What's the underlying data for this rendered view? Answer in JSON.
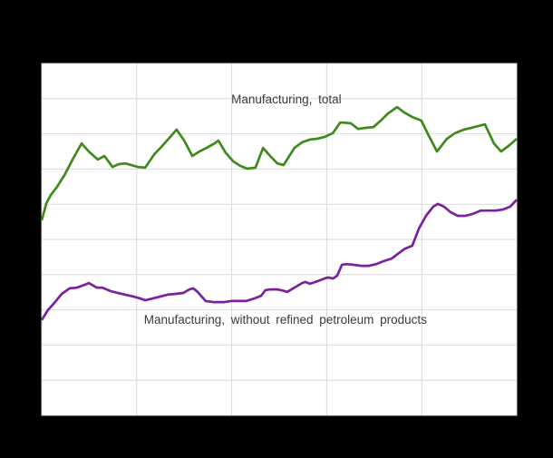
{
  "page": {
    "background_color": "#000000"
  },
  "chart_data": {
    "type": "line",
    "title": "",
    "xlabel": "",
    "ylabel": "",
    "legend": "none (in-plot annotations)",
    "plot": {
      "background": "#ffffff",
      "grid": true,
      "grid_color": "#d9d9d9",
      "border_color": "#d9d9d9"
    },
    "x_axis": {
      "labels_visible": false,
      "intervals": 5
    },
    "y_axis": {
      "labels_visible": false,
      "min": 0,
      "max": 100,
      "gridline_step": 10
    },
    "series": [
      {
        "name": "Manufacturing, total",
        "color": "#3e8a1c",
        "points": [
          [
            0.0,
            55.4
          ],
          [
            0.01,
            60.3
          ],
          [
            0.019,
            62.6
          ],
          [
            0.032,
            64.9
          ],
          [
            0.048,
            68.3
          ],
          [
            0.065,
            72.7
          ],
          [
            0.084,
            77.3
          ],
          [
            0.099,
            75.0
          ],
          [
            0.118,
            72.7
          ],
          [
            0.132,
            73.7
          ],
          [
            0.149,
            70.6
          ],
          [
            0.162,
            71.4
          ],
          [
            0.176,
            71.6
          ],
          [
            0.189,
            71.1
          ],
          [
            0.202,
            70.6
          ],
          [
            0.218,
            70.4
          ],
          [
            0.237,
            74.2
          ],
          [
            0.252,
            76.3
          ],
          [
            0.269,
            78.9
          ],
          [
            0.284,
            81.2
          ],
          [
            0.3,
            78.1
          ],
          [
            0.317,
            73.7
          ],
          [
            0.332,
            75.0
          ],
          [
            0.347,
            76.0
          ],
          [
            0.364,
            77.3
          ],
          [
            0.372,
            78.1
          ],
          [
            0.387,
            74.7
          ],
          [
            0.403,
            72.2
          ],
          [
            0.418,
            70.9
          ],
          [
            0.433,
            70.1
          ],
          [
            0.45,
            70.4
          ],
          [
            0.466,
            76.0
          ],
          [
            0.481,
            73.7
          ],
          [
            0.496,
            71.6
          ],
          [
            0.509,
            71.1
          ],
          [
            0.532,
            76.0
          ],
          [
            0.548,
            77.6
          ],
          [
            0.565,
            78.4
          ],
          [
            0.58,
            78.6
          ],
          [
            0.595,
            79.1
          ],
          [
            0.613,
            80.2
          ],
          [
            0.628,
            83.2
          ],
          [
            0.635,
            83.2
          ],
          [
            0.651,
            83.0
          ],
          [
            0.666,
            81.4
          ],
          [
            0.681,
            81.7
          ],
          [
            0.698,
            81.9
          ],
          [
            0.714,
            83.8
          ],
          [
            0.729,
            85.8
          ],
          [
            0.748,
            87.6
          ],
          [
            0.763,
            86.1
          ],
          [
            0.78,
            84.8
          ],
          [
            0.799,
            83.8
          ],
          [
            0.815,
            79.4
          ],
          [
            0.832,
            75.0
          ],
          [
            0.853,
            78.6
          ],
          [
            0.87,
            80.2
          ],
          [
            0.889,
            81.2
          ],
          [
            0.91,
            81.9
          ],
          [
            0.933,
            82.7
          ],
          [
            0.952,
            77.3
          ],
          [
            0.967,
            75.0
          ],
          [
            0.985,
            76.8
          ],
          [
            1.0,
            78.6
          ]
        ]
      },
      {
        "name": "Manufacturing, without refined petroleum products",
        "color": "#7a219e",
        "points": [
          [
            0.0,
            27.1
          ],
          [
            0.013,
            29.9
          ],
          [
            0.027,
            32.0
          ],
          [
            0.042,
            34.5
          ],
          [
            0.059,
            36.1
          ],
          [
            0.074,
            36.3
          ],
          [
            0.09,
            37.1
          ],
          [
            0.099,
            37.6
          ],
          [
            0.116,
            36.3
          ],
          [
            0.128,
            36.3
          ],
          [
            0.145,
            35.3
          ],
          [
            0.16,
            34.8
          ],
          [
            0.176,
            34.3
          ],
          [
            0.193,
            33.8
          ],
          [
            0.208,
            33.2
          ],
          [
            0.218,
            32.7
          ],
          [
            0.233,
            33.2
          ],
          [
            0.25,
            33.8
          ],
          [
            0.265,
            34.3
          ],
          [
            0.28,
            34.5
          ],
          [
            0.298,
            34.8
          ],
          [
            0.311,
            35.8
          ],
          [
            0.319,
            36.1
          ],
          [
            0.328,
            35.1
          ],
          [
            0.345,
            32.5
          ],
          [
            0.361,
            32.2
          ],
          [
            0.384,
            32.2
          ],
          [
            0.399,
            32.5
          ],
          [
            0.414,
            32.5
          ],
          [
            0.431,
            32.5
          ],
          [
            0.447,
            33.2
          ],
          [
            0.462,
            34.0
          ],
          [
            0.471,
            35.6
          ],
          [
            0.481,
            35.8
          ],
          [
            0.496,
            35.8
          ],
          [
            0.504,
            35.6
          ],
          [
            0.517,
            35.1
          ],
          [
            0.532,
            36.3
          ],
          [
            0.548,
            37.6
          ],
          [
            0.555,
            37.9
          ],
          [
            0.565,
            37.4
          ],
          [
            0.58,
            38.1
          ],
          [
            0.595,
            38.9
          ],
          [
            0.603,
            39.2
          ],
          [
            0.613,
            38.9
          ],
          [
            0.622,
            39.7
          ],
          [
            0.632,
            42.8
          ],
          [
            0.641,
            43.0
          ],
          [
            0.656,
            42.8
          ],
          [
            0.672,
            42.5
          ],
          [
            0.689,
            42.5
          ],
          [
            0.704,
            43.0
          ],
          [
            0.719,
            43.8
          ],
          [
            0.737,
            44.6
          ],
          [
            0.752,
            46.1
          ],
          [
            0.765,
            47.4
          ],
          [
            0.78,
            48.2
          ],
          [
            0.794,
            53.1
          ],
          [
            0.809,
            56.7
          ],
          [
            0.824,
            59.3
          ],
          [
            0.834,
            60.1
          ],
          [
            0.847,
            59.3
          ],
          [
            0.861,
            57.7
          ],
          [
            0.876,
            56.7
          ],
          [
            0.891,
            56.7
          ],
          [
            0.906,
            57.2
          ],
          [
            0.924,
            58.2
          ],
          [
            0.939,
            58.2
          ],
          [
            0.956,
            58.2
          ],
          [
            0.971,
            58.5
          ],
          [
            0.986,
            59.3
          ],
          [
            1.0,
            61.3
          ]
        ]
      }
    ],
    "annotations": [
      {
        "text": "Manufacturing,  total",
        "x": 0.515,
        "value": 89.9,
        "color": "#3a3a3a"
      },
      {
        "text": "Manufacturing,  without refined  petroleum  products",
        "x": 0.513,
        "value": 27.3,
        "color": "#3a3a3a"
      }
    ]
  }
}
